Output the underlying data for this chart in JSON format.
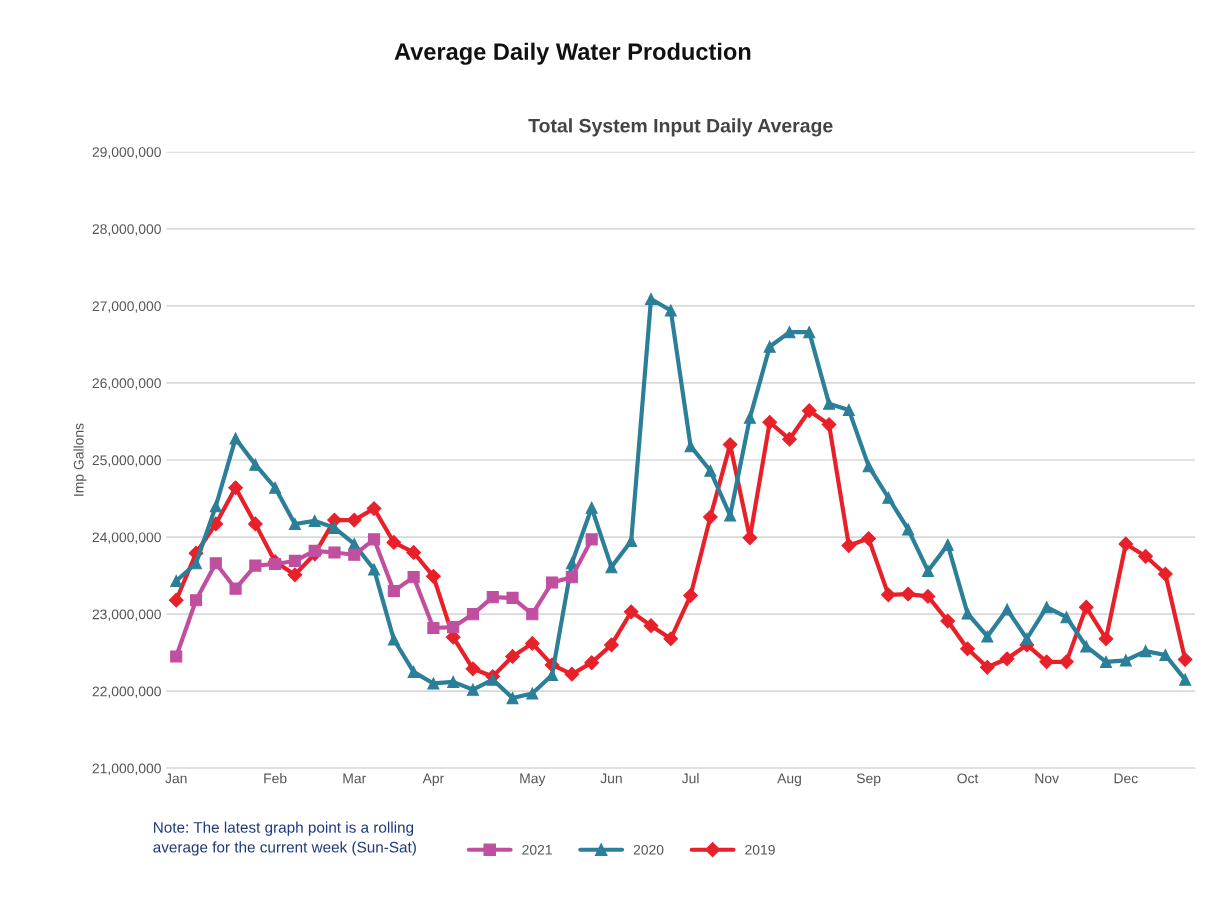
{
  "chart_data": {
    "type": "line",
    "title": "Average Daily Water Production",
    "subtitle": "Total System Input Daily Average",
    "ylabel": "Imp Gallons",
    "categories": [
      "Jan",
      null,
      null,
      null,
      null,
      "Feb",
      null,
      null,
      null,
      "Mar",
      null,
      null,
      null,
      "Apr",
      null,
      null,
      null,
      null,
      "May",
      null,
      null,
      null,
      "Jun",
      null,
      null,
      null,
      "Jul",
      null,
      null,
      null,
      null,
      "Aug",
      null,
      null,
      null,
      "Sep",
      null,
      null,
      null,
      null,
      "Oct",
      null,
      null,
      null,
      "Nov",
      null,
      null,
      null,
      "Dec",
      null,
      null,
      null
    ],
    "series": [
      {
        "name": "2021",
        "color": "#c0509f",
        "marker": "square",
        "values": [
          22450000,
          23180000,
          23660000,
          23330000,
          23630000,
          23650000,
          23690000,
          23820000,
          23800000,
          23770000,
          23970000,
          23300000,
          23480000,
          22820000,
          22830000,
          23000000,
          23220000,
          23210000,
          23000000,
          23410000,
          23480000,
          23970000,
          null,
          null,
          null,
          null,
          null,
          null,
          null,
          null,
          null,
          null,
          null,
          null,
          null,
          null,
          null,
          null,
          null,
          null,
          null,
          null,
          null,
          null,
          null,
          null,
          null,
          null,
          null,
          null,
          null,
          null
        ]
      },
      {
        "name": "2020",
        "color": "#2b7f98",
        "marker": "triangle",
        "values": [
          23430000,
          23660000,
          24400000,
          25280000,
          24940000,
          24640000,
          24170000,
          24210000,
          24120000,
          23910000,
          23580000,
          22670000,
          22250000,
          22100000,
          22120000,
          22020000,
          22150000,
          21910000,
          21970000,
          22210000,
          23660000,
          24380000,
          23610000,
          23950000,
          27090000,
          26940000,
          25180000,
          24860000,
          24280000,
          25550000,
          26470000,
          26660000,
          26660000,
          25730000,
          25650000,
          24920000,
          24510000,
          24100000,
          23560000,
          23900000,
          23010000,
          22710000,
          23060000,
          22680000,
          23090000,
          22960000,
          22580000,
          22380000,
          22400000,
          22520000,
          22470000,
          22150000
        ]
      },
      {
        "name": "2019",
        "color": "#e8202a",
        "marker": "diamond",
        "values": [
          23180000,
          23790000,
          24170000,
          24640000,
          24170000,
          23680000,
          23510000,
          23780000,
          24220000,
          24220000,
          24370000,
          23930000,
          23800000,
          23490000,
          22700000,
          22290000,
          22190000,
          22450000,
          22620000,
          22340000,
          22220000,
          22370000,
          22600000,
          23030000,
          22850000,
          22680000,
          23240000,
          24260000,
          25200000,
          23990000,
          25490000,
          25270000,
          25640000,
          25460000,
          23890000,
          23980000,
          23250000,
          23260000,
          23230000,
          22910000,
          22550000,
          22310000,
          22420000,
          22600000,
          22380000,
          22380000,
          23090000,
          22680000,
          23910000,
          23750000,
          23520000,
          22410000
        ]
      }
    ],
    "ylim": [
      21000000,
      29000000
    ],
    "yticks": [
      {
        "value": 21000000,
        "label": "21,000,000"
      },
      {
        "value": 22000000,
        "label": "22,000,000"
      },
      {
        "value": 23000000,
        "label": "23,000,000"
      },
      {
        "value": 24000000,
        "label": "24,000,000"
      },
      {
        "value": 25000000,
        "label": "25,000,000"
      },
      {
        "value": 26000000,
        "label": "26,000,000"
      },
      {
        "value": 27000000,
        "label": "27,000,000"
      },
      {
        "value": 28000000,
        "label": "28,000,000"
      },
      {
        "value": 29000000,
        "label": "29,000,000"
      }
    ],
    "grid": "y",
    "legend": "bottom",
    "line_style": "solid",
    "annotations": [
      "Note: The latest graph point is a rolling\naverage for the current week (Sun-Sat)"
    ]
  }
}
